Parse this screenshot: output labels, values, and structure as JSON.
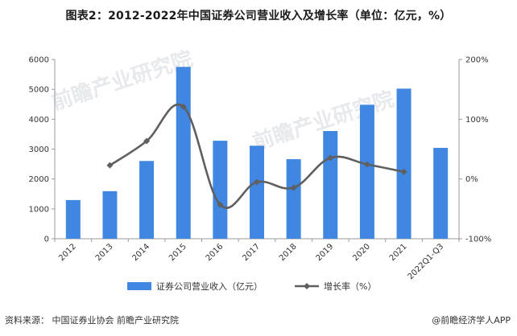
{
  "title": "图表2：2012-2022年中国证券公司营业收入及增长率（单位：亿元，%）",
  "source_label": "资料来源：",
  "source_text": "中国证券业协会 前瞻产业研究院",
  "brand_text": "@前瞻经济学人APP",
  "watermark_text": "前瞻产业研究院",
  "colors": {
    "bar": "#3f87e0",
    "line": "#5f5f5f",
    "axis": "#9a9a9a"
  },
  "chart_data": {
    "type": "bar",
    "categories": [
      "2012",
      "2013",
      "2014",
      "2015",
      "2016",
      "2017",
      "2018",
      "2019",
      "2020",
      "2021",
      "2022Q1-Q3"
    ],
    "series": [
      {
        "name": "证券公司营业收入（亿元）",
        "type": "bar",
        "axis": "left",
        "values": [
          1295,
          1592,
          2603,
          5752,
          3280,
          3113,
          2663,
          3605,
          4485,
          5024,
          3042
        ]
      },
      {
        "name": "增长率（%）",
        "type": "line",
        "axis": "right",
        "values": [
          null,
          22.9,
          63.5,
          120.9,
          -43.0,
          -5.1,
          -14.5,
          35.4,
          24.4,
          12.0,
          null
        ]
      }
    ],
    "ylim_left": [
      0,
      6000
    ],
    "yticks_left": [
      "0",
      "1000",
      "2000",
      "3000",
      "4000",
      "5000",
      "6000"
    ],
    "ylim_right": [
      -100,
      200
    ],
    "yticks_right": [
      "-100%",
      "0%",
      "100%",
      "200%"
    ],
    "legend_position": "bottom"
  }
}
